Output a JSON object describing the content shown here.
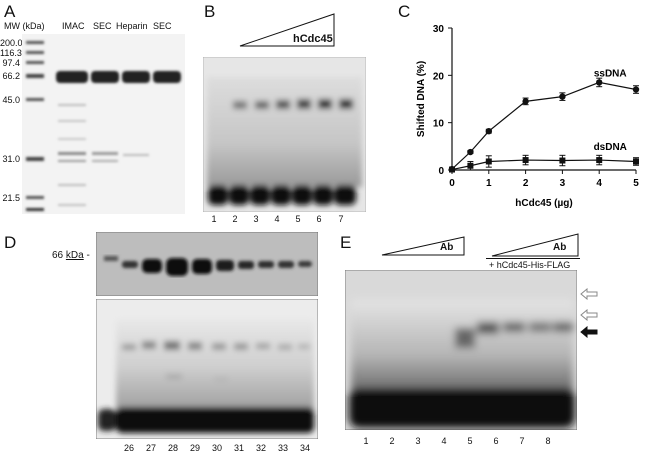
{
  "panels": {
    "a": {
      "letter": "A",
      "mw_header": "MW (kDa)",
      "markers": [
        "200.0",
        "116.3",
        "97.4",
        "66.2",
        "45.0",
        "31.0",
        "21.5"
      ],
      "lanes": [
        "IMAC",
        "SEC",
        "Heparin",
        "SEC"
      ]
    },
    "b": {
      "letter": "B",
      "protein": "hCdc45",
      "lanes": [
        "1",
        "2",
        "3",
        "4",
        "5",
        "6",
        "7"
      ]
    },
    "c": {
      "letter": "C",
      "chart_data": {
        "type": "line",
        "xlabel": "hCdc45 (µg)",
        "ylabel": "Shifted DNA (%)",
        "xlim": [
          0,
          5
        ],
        "ylim": [
          0,
          30
        ],
        "xticks": [
          "0",
          "1",
          "2",
          "3",
          "4",
          "5"
        ],
        "yticks": [
          "0",
          "10",
          "20",
          "30"
        ],
        "series": [
          {
            "name": "ssDNA",
            "marker": "circle",
            "x": [
              0,
              0.5,
              1,
              2,
              3,
              4,
              5
            ],
            "y": [
              0.2,
              3.8,
              8.2,
              14.5,
              15.5,
              18.5,
              17.0
            ],
            "err": [
              0.2,
              0.3,
              0.4,
              0.7,
              0.8,
              0.9,
              0.8
            ]
          },
          {
            "name": "dsDNA",
            "marker": "square",
            "x": [
              0,
              0.5,
              1,
              2,
              3,
              4,
              5
            ],
            "y": [
              0.1,
              0.9,
              1.8,
              2.1,
              2.0,
              2.1,
              1.8
            ],
            "err": [
              0.1,
              0.9,
              1.2,
              1.0,
              1.1,
              1.0,
              0.8
            ]
          }
        ]
      }
    },
    "d": {
      "letter": "D",
      "marker": "66",
      "marker_unit": "kDa",
      "fractions": [
        "26",
        "27",
        "28",
        "29",
        "30",
        "31",
        "32",
        "33",
        "34"
      ]
    },
    "e": {
      "letter": "E",
      "antibody": "Ab",
      "condition": "+ hCdc45-His-FLAG",
      "lanes": [
        "1",
        "2",
        "3",
        "4",
        "5",
        "6",
        "7",
        "8"
      ]
    }
  }
}
